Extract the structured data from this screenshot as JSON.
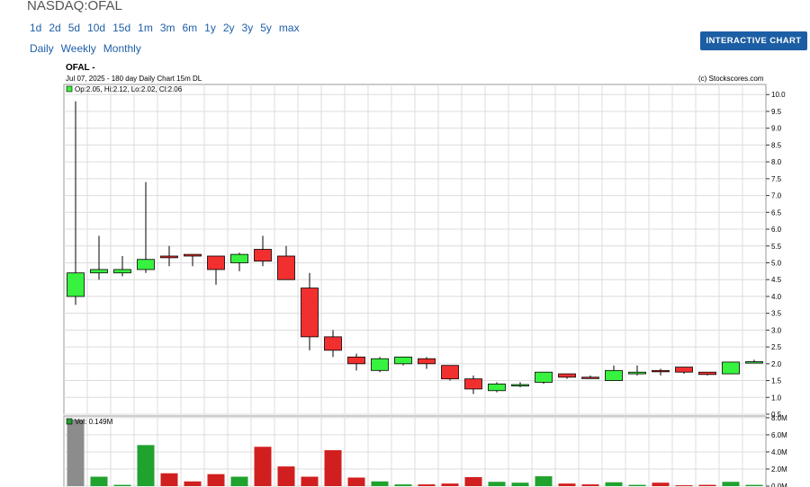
{
  "header": {
    "ticker": "NASDAQ:OFAL",
    "periods": [
      "1d",
      "2d",
      "5d",
      "10d",
      "15d",
      "1m",
      "3m",
      "6m",
      "1y",
      "2y",
      "3y",
      "5y",
      "max"
    ],
    "modes": [
      "Daily",
      "Weekly",
      "Monthly"
    ],
    "interactive_button": "INTERACTIVE CHART",
    "symbol_line": "OFAL -",
    "sub_line": "Jul 07, 2025 - 180 day  Daily Chart 15m DL",
    "copyright": "(c) Stockscores.com"
  },
  "colors": {
    "up": "#38f240",
    "down": "#f22f2f",
    "grid": "#dcdcdc",
    "vol_up": "#1fa22e",
    "vol_down": "#d11f1f",
    "vol_first": "#8c8c8c"
  },
  "chart_data": [
    {
      "type": "candlestick",
      "legend": "Op:2.05, Hi:2.12, Lo:2.02, Cl:2.06",
      "ylim": [
        0.5,
        10.3
      ],
      "yticks": [
        "10.0",
        "9.5",
        "9.0",
        "8.5",
        "8.0",
        "7.5",
        "7.0",
        "6.5",
        "6.0",
        "5.5",
        "5.0",
        "4.5",
        "4.0",
        "3.5",
        "3.0",
        "2.5",
        "2.0",
        "1.5",
        "1.0",
        "0.5"
      ],
      "candles": [
        {
          "o": 4.0,
          "h": 9.8,
          "l": 3.75,
          "c": 4.7
        },
        {
          "o": 4.7,
          "h": 5.8,
          "l": 4.5,
          "c": 4.8
        },
        {
          "o": 4.7,
          "h": 5.2,
          "l": 4.6,
          "c": 4.8
        },
        {
          "o": 4.8,
          "h": 7.4,
          "l": 4.7,
          "c": 5.1
        },
        {
          "o": 5.2,
          "h": 5.5,
          "l": 4.9,
          "c": 5.15
        },
        {
          "o": 5.25,
          "h": 5.25,
          "l": 4.9,
          "c": 5.2
        },
        {
          "o": 5.2,
          "h": 5.2,
          "l": 4.35,
          "c": 4.8
        },
        {
          "o": 5.0,
          "h": 5.3,
          "l": 4.75,
          "c": 5.25
        },
        {
          "o": 5.4,
          "h": 5.8,
          "l": 4.9,
          "c": 5.05
        },
        {
          "o": 5.2,
          "h": 5.5,
          "l": 4.5,
          "c": 4.5
        },
        {
          "o": 4.25,
          "h": 4.7,
          "l": 2.4,
          "c": 2.8
        },
        {
          "o": 2.8,
          "h": 3.0,
          "l": 2.2,
          "c": 2.4
        },
        {
          "o": 2.2,
          "h": 2.3,
          "l": 1.8,
          "c": 2.0
        },
        {
          "o": 1.8,
          "h": 2.2,
          "l": 1.75,
          "c": 2.15
        },
        {
          "o": 2.0,
          "h": 2.2,
          "l": 1.95,
          "c": 2.2
        },
        {
          "o": 2.15,
          "h": 2.2,
          "l": 1.85,
          "c": 2.0
        },
        {
          "o": 1.95,
          "h": 1.95,
          "l": 1.5,
          "c": 1.55
        },
        {
          "o": 1.55,
          "h": 1.65,
          "l": 1.1,
          "c": 1.25
        },
        {
          "o": 1.2,
          "h": 1.45,
          "l": 1.15,
          "c": 1.4
        },
        {
          "o": 1.35,
          "h": 1.45,
          "l": 1.3,
          "c": 1.38
        },
        {
          "o": 1.45,
          "h": 1.75,
          "l": 1.4,
          "c": 1.75
        },
        {
          "o": 1.7,
          "h": 1.7,
          "l": 1.55,
          "c": 1.6
        },
        {
          "o": 1.6,
          "h": 1.65,
          "l": 1.55,
          "c": 1.57
        },
        {
          "o": 1.5,
          "h": 1.95,
          "l": 1.5,
          "c": 1.8
        },
        {
          "o": 1.7,
          "h": 1.95,
          "l": 1.65,
          "c": 1.75
        },
        {
          "o": 1.8,
          "h": 1.85,
          "l": 1.65,
          "c": 1.78
        },
        {
          "o": 1.9,
          "h": 1.9,
          "l": 1.7,
          "c": 1.75
        },
        {
          "o": 1.75,
          "h": 1.75,
          "l": 1.65,
          "c": 1.68
        },
        {
          "o": 1.7,
          "h": 2.05,
          "l": 1.7,
          "c": 2.05
        },
        {
          "o": 2.06,
          "h": 2.12,
          "l": 2.02,
          "c": 2.06
        }
      ]
    },
    {
      "type": "bar",
      "legend": "Vol: 0.149M",
      "ylim": [
        0,
        8.2
      ],
      "yticks": [
        "8.0M",
        "6.0M",
        "4.0M",
        "2.0M",
        "0.0M"
      ],
      "volumes_m": [
        7.8,
        1.1,
        0.15,
        4.8,
        1.5,
        0.55,
        1.4,
        1.1,
        4.6,
        2.3,
        1.1,
        4.2,
        1.0,
        0.55,
        0.2,
        0.2,
        0.3,
        1.05,
        0.5,
        0.4,
        1.15,
        0.3,
        0.2,
        0.45,
        0.15,
        0.4,
        0.1,
        0.15,
        0.5,
        0.149
      ]
    }
  ]
}
